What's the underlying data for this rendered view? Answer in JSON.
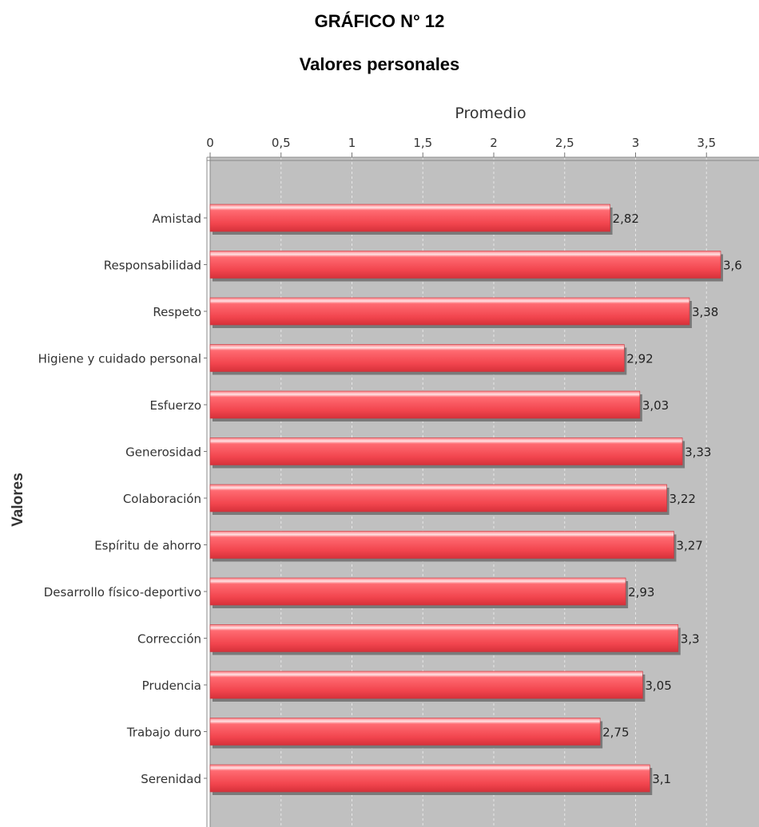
{
  "chart_data": {
    "type": "bar",
    "orientation": "horizontal",
    "title": "GRÁFICO N° 12",
    "subtitle": "Valores personales",
    "xlabel": "Promedio",
    "ylabel": "Valores",
    "xlim": [
      0,
      3.6
    ],
    "ticks": [
      "0",
      "0,5",
      "1",
      "1,5",
      "2",
      "2,5",
      "3",
      "3,5"
    ],
    "tick_values": [
      0,
      0.5,
      1,
      1.5,
      2,
      2.5,
      3,
      3.5
    ],
    "grid": true,
    "axis_position": "top",
    "categories": [
      "Amistad",
      "Responsabilidad",
      "Respeto",
      "Higiene y cuidado personal",
      "Esfuerzo",
      "Generosidad",
      "Colaboración",
      "Espíritu de ahorro",
      "Desarrollo físico-deportivo",
      "Corrección",
      "Prudencia",
      "Trabajo duro",
      "Serenidad"
    ],
    "values": [
      2.82,
      3.6,
      3.38,
      2.92,
      3.03,
      3.33,
      3.22,
      3.27,
      2.93,
      3.3,
      3.05,
      2.75,
      3.1
    ],
    "value_labels": [
      "2,82",
      "3,6",
      "3,38",
      "2,92",
      "3,03",
      "3,33",
      "3,22",
      "3,27",
      "2,93",
      "3,3",
      "3,05",
      "2,75",
      "3,1"
    ],
    "colors": {
      "bar": "#f2525a",
      "bar_highlight": "#ffd6d8",
      "bar_shadow": "#7a7a7a",
      "plot_background": "#c0c0c0",
      "gridline": "#e6e6e6"
    }
  }
}
